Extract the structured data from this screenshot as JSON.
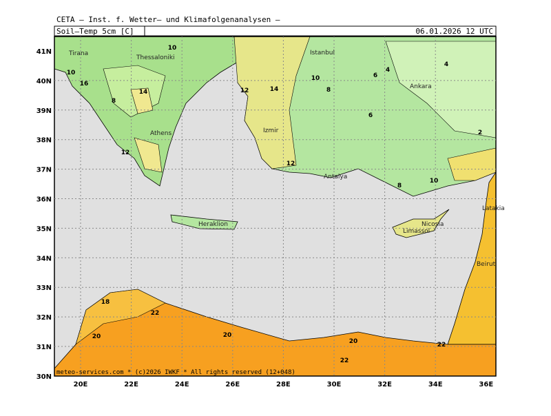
{
  "header": {
    "title": "CETA – Inst. f. Wetter– und Klimafolgenanalysen –",
    "parameter": "Soil–Temp 5cm [C]",
    "datetime": "06.01.2026 12 UTC"
  },
  "map": {
    "lat_labels": [
      "41N",
      "40N",
      "39N",
      "38N",
      "37N",
      "36N",
      "35N",
      "34N",
      "33N",
      "32N",
      "31N",
      "30N"
    ],
    "lon_labels": [
      "20E",
      "22E",
      "24E",
      "26E",
      "28E",
      "30E",
      "32E",
      "34E",
      "36E"
    ],
    "cities": [
      "Tirana",
      "Thessaloniki",
      "Istanbul",
      "Ankara",
      "Izmir",
      "Athens",
      "Antalya",
      "Heraklion",
      "Nicosia",
      "Limassol",
      "Latakia",
      "Beirut"
    ],
    "contour_labels": [
      "10",
      "10",
      "16",
      "14",
      "8",
      "12",
      "12",
      "14",
      "10",
      "8",
      "6",
      "4",
      "4",
      "6",
      "2",
      "12",
      "8",
      "10",
      "18",
      "22",
      "20",
      "20",
      "20",
      "22",
      "22"
    ],
    "copyright": "meteo-services.com * (c)2026 IWKF * All rights reserved (12+048)"
  }
}
